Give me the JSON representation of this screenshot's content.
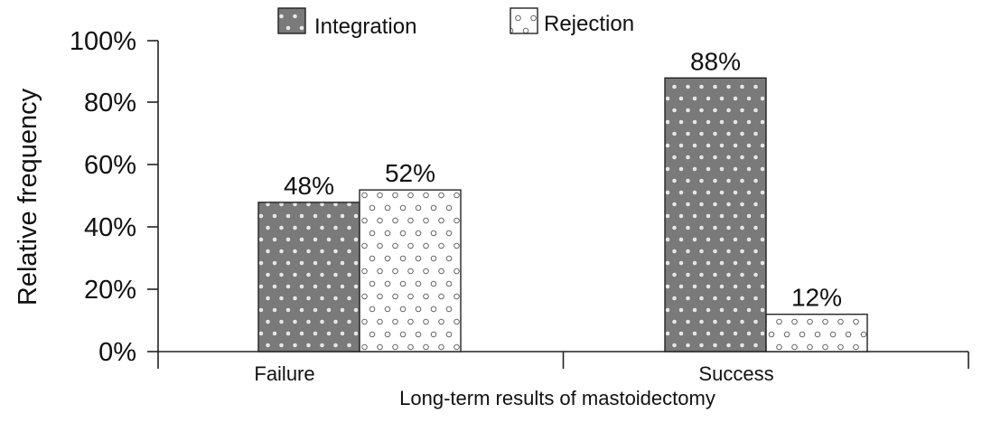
{
  "chart_data": {
    "type": "bar",
    "categories": [
      "Failure",
      "Success"
    ],
    "series": [
      {
        "name": "Integration",
        "values": [
          48,
          88
        ],
        "labels": [
          "48%",
          "88%"
        ]
      },
      {
        "name": "Rejection",
        "values": [
          52,
          12
        ],
        "labels": [
          "52%",
          "12%"
        ]
      }
    ],
    "title": "",
    "xlabel": "Long-term results of mastoidectomy",
    "ylabel": "Relative frequency",
    "ylim": [
      0,
      100
    ],
    "yticks": [
      "0%",
      "20%",
      "40%",
      "60%",
      "80%",
      "100%"
    ],
    "grid": false,
    "legend_position": "top-center",
    "colors": {
      "Integration": "#7a7a7a",
      "Rejection": "#ffffff",
      "dots": "#e6e6e6",
      "outline": "#222222"
    }
  }
}
